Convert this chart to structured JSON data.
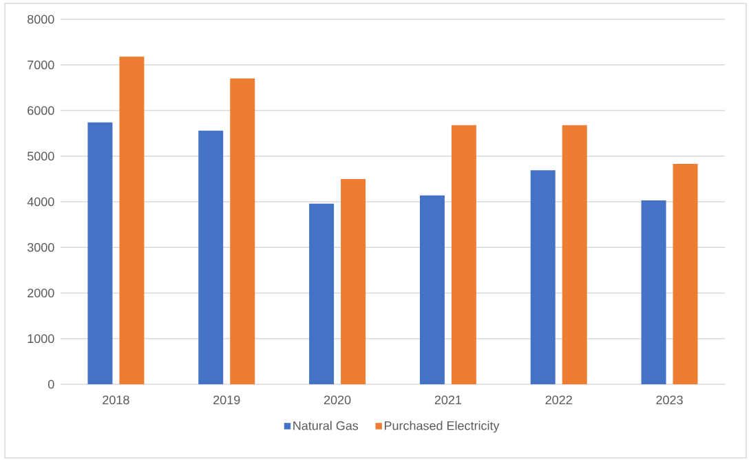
{
  "chart_data": {
    "type": "bar",
    "categories": [
      "2018",
      "2019",
      "2020",
      "2021",
      "2022",
      "2023"
    ],
    "series": [
      {
        "name": "Natural Gas",
        "color": "#4472c4",
        "values": [
          5740,
          5560,
          3960,
          4140,
          4690,
          4030
        ]
      },
      {
        "name": "Purchased Electricity",
        "color": "#ed7d31",
        "values": [
          7180,
          6700,
          4500,
          5680,
          5680,
          4830
        ]
      }
    ],
    "ylim": [
      0,
      8000
    ],
    "yticks": [
      0,
      1000,
      2000,
      3000,
      4000,
      5000,
      6000,
      7000,
      8000
    ],
    "grid": "y",
    "legend": "bottom"
  }
}
